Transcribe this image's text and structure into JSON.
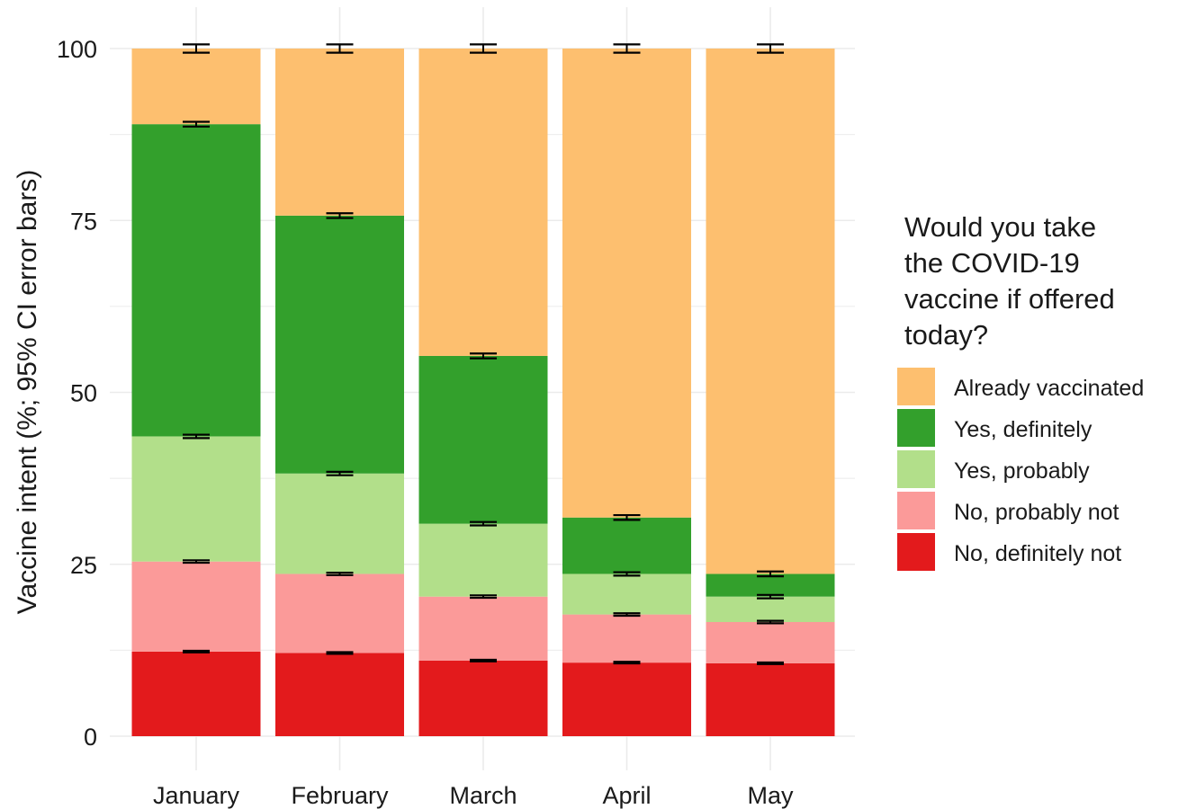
{
  "chart_data": {
    "type": "bar",
    "stacked": true,
    "title": "",
    "xlabel": "",
    "ylabel": "Vaccine intent (%; 95% CI error bars)",
    "ylim": [
      0,
      100
    ],
    "yticks": [
      0,
      25,
      50,
      75,
      100
    ],
    "grid": true,
    "legend_position": "right",
    "legend_title_lines": [
      "Would you take",
      " the COVID-19",
      " vaccine if offered",
      " today?"
    ],
    "categories": [
      "January",
      "February",
      "March",
      "April",
      "May"
    ],
    "series": [
      {
        "name": "No, definitely not",
        "color": "#e31a1c",
        "values": [
          12.3,
          12.1,
          11.0,
          10.7,
          10.6
        ]
      },
      {
        "name": "No, probably not",
        "color": "#fb9a99",
        "values": [
          13.1,
          11.5,
          9.3,
          7.0,
          6.0
        ]
      },
      {
        "name": "Yes, probably",
        "color": "#b2df8a",
        "values": [
          18.2,
          14.6,
          10.6,
          5.9,
          3.7
        ]
      },
      {
        "name": "Yes, definitely",
        "color": "#33a02c",
        "values": [
          45.4,
          37.5,
          24.4,
          8.2,
          3.3
        ]
      },
      {
        "name": "Already vaccinated",
        "color": "#fdbf6f",
        "values": [
          11.0,
          24.3,
          44.7,
          68.2,
          76.4
        ]
      }
    ],
    "error_bar_half_width_pct": [
      [
        0.12,
        0.12,
        0.12,
        0.12,
        0.12
      ],
      [
        0.18,
        0.18,
        0.18,
        0.18,
        0.18
      ],
      [
        0.25,
        0.25,
        0.25,
        0.25,
        0.25
      ],
      [
        0.35,
        0.35,
        0.35,
        0.35,
        0.35
      ],
      [
        0.6,
        0.6,
        0.6,
        0.6,
        0.6
      ]
    ],
    "legend_order": [
      "Already vaccinated",
      "Yes, definitely",
      "Yes, probably",
      "No, probably not",
      "No, definitely not"
    ]
  }
}
